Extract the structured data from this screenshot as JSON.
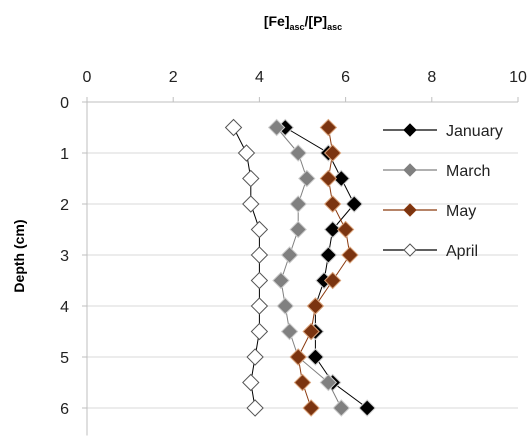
{
  "chart_data": {
    "type": "scatter",
    "title": "",
    "xlabel_parts": [
      "[Fe]",
      "asc",
      "/[P]",
      "asc"
    ],
    "ylabel": "Depth (cm)",
    "xlim": [
      0,
      10
    ],
    "ylim": [
      0,
      6.5
    ],
    "y_inverted": true,
    "x_axis_position": "top",
    "x_ticks": [
      0,
      2,
      4,
      6,
      8,
      10
    ],
    "y_ticks": [
      0,
      1,
      2,
      3,
      4,
      5,
      6
    ],
    "grid": "horizontal",
    "legend_position": "top-right",
    "series": [
      {
        "name": "January",
        "color": "#000000",
        "marker_fill": "#000000",
        "line_color": "#000000",
        "points": [
          [
            4.6,
            0.5
          ],
          [
            5.6,
            1.0
          ],
          [
            5.9,
            1.5
          ],
          [
            6.2,
            2.0
          ],
          [
            5.7,
            2.5
          ],
          [
            5.6,
            3.0
          ],
          [
            5.5,
            3.5
          ],
          [
            5.3,
            4.0
          ],
          [
            5.3,
            4.5
          ],
          [
            5.3,
            5.0
          ],
          [
            5.7,
            5.5
          ],
          [
            6.5,
            6.0
          ]
        ]
      },
      {
        "name": "March",
        "color": "#808080",
        "marker_fill": "#808080",
        "line_color": "#808080",
        "points": [
          [
            4.4,
            0.5
          ],
          [
            4.9,
            1.0
          ],
          [
            5.1,
            1.5
          ],
          [
            4.9,
            2.0
          ],
          [
            4.9,
            2.5
          ],
          [
            4.7,
            3.0
          ],
          [
            4.5,
            3.5
          ],
          [
            4.6,
            4.0
          ],
          [
            4.7,
            4.5
          ],
          [
            4.9,
            5.0
          ],
          [
            5.6,
            5.5
          ],
          [
            5.9,
            6.0
          ]
        ]
      },
      {
        "name": "May",
        "color": "#8B3A0F",
        "marker_fill": "#7B3410",
        "line_color": "#8B3A0F",
        "points": [
          [
            5.6,
            0.5
          ],
          [
            5.7,
            1.0
          ],
          [
            5.6,
            1.5
          ],
          [
            5.7,
            2.0
          ],
          [
            6.0,
            2.5
          ],
          [
            6.1,
            3.0
          ],
          [
            5.7,
            3.5
          ],
          [
            5.3,
            4.0
          ],
          [
            5.2,
            4.5
          ],
          [
            4.9,
            5.0
          ],
          [
            5.0,
            5.5
          ],
          [
            5.2,
            6.0
          ]
        ]
      },
      {
        "name": "April",
        "color": "#000000",
        "marker_fill": "#ffffff",
        "line_color": "#000000",
        "points": [
          [
            3.4,
            0.5
          ],
          [
            3.7,
            1.0
          ],
          [
            3.8,
            1.5
          ],
          [
            3.8,
            2.0
          ],
          [
            4.0,
            2.5
          ],
          [
            4.0,
            3.0
          ],
          [
            4.0,
            3.5
          ],
          [
            4.0,
            4.0
          ],
          [
            4.0,
            4.5
          ],
          [
            3.9,
            5.0
          ],
          [
            3.8,
            5.5
          ],
          [
            3.9,
            6.0
          ]
        ]
      }
    ]
  }
}
